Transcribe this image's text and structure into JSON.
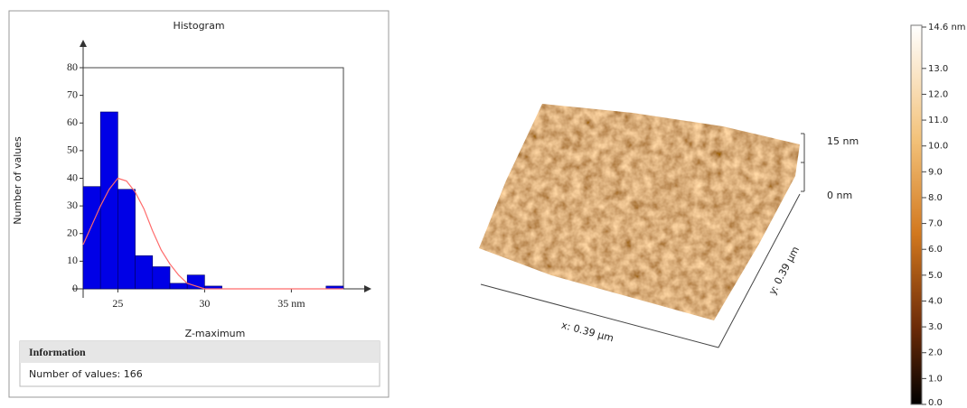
{
  "chart_data": {
    "type": "histogram",
    "title": "Histogram",
    "x_label": "Z-maximum",
    "y_label": "Number of values",
    "bins": [
      23,
      24,
      25,
      26,
      27,
      28,
      29,
      30,
      31,
      32,
      33,
      34,
      35,
      36,
      37,
      38
    ],
    "values": [
      37,
      64,
      36,
      12,
      8,
      2,
      5,
      1,
      0,
      0,
      0,
      0,
      0,
      0,
      1
    ],
    "color": "#0000e6",
    "fit": {
      "color": "#ff6a6a",
      "x": [
        23,
        23.5,
        24,
        24.5,
        25,
        25.5,
        26,
        26.5,
        27,
        27.5,
        28,
        28.5,
        29,
        29.5,
        30,
        31,
        38
      ],
      "values": [
        16,
        23,
        30,
        36,
        40,
        39,
        35,
        29,
        21,
        14,
        9,
        5,
        2,
        1,
        0,
        0,
        0
      ]
    },
    "xlim": [
      23,
      38
    ],
    "xticks": [
      25,
      30,
      {
        "value": 35,
        "label": "35 nm"
      }
    ],
    "ylim": [
      0,
      80
    ],
    "yticks": [
      0,
      10,
      20,
      30,
      40,
      50,
      60,
      70,
      80
    ]
  },
  "info": {
    "header": "Information",
    "text": "Number of values: 166"
  },
  "surface": {
    "x_label": "x: 0.39 µm",
    "y_label": "y: 0.39 µm",
    "z_top": "15 nm",
    "z_bottom": "0 nm"
  },
  "colorbar": {
    "ylim": [
      0,
      14.6
    ],
    "yticks": [
      {
        "value": 0,
        "label": "0.0"
      },
      {
        "value": 1,
        "label": "1.0"
      },
      {
        "value": 2,
        "label": "2.0"
      },
      {
        "value": 3,
        "label": "3.0"
      },
      {
        "value": 4,
        "label": "4.0"
      },
      {
        "value": 5,
        "label": "5.0"
      },
      {
        "value": 6,
        "label": "6.0"
      },
      {
        "value": 7,
        "label": "7.0"
      },
      {
        "value": 8,
        "label": "8.0"
      },
      {
        "value": 9,
        "label": "9.0"
      },
      {
        "value": 10,
        "label": "10.0"
      },
      {
        "value": 11,
        "label": "11.0"
      },
      {
        "value": 12,
        "label": "12.0"
      },
      {
        "value": 13,
        "label": "13.0"
      },
      {
        "value": 14.6,
        "label": "14.6 nm"
      }
    ]
  }
}
